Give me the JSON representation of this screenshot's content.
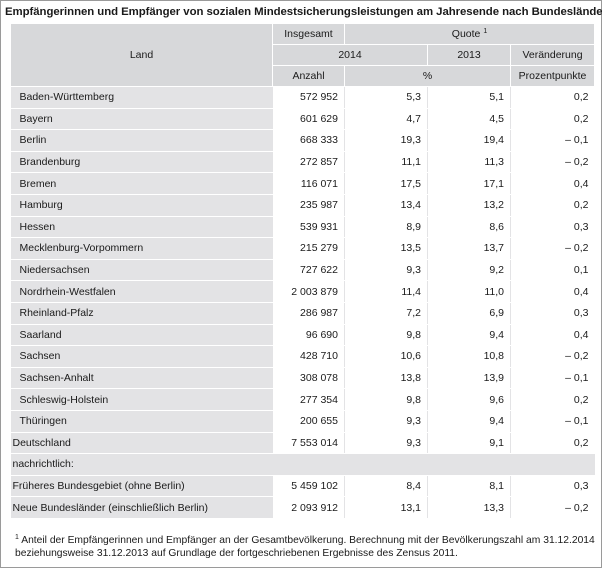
{
  "title": "Empfängerinnen und Empfänger von sozialen Mindestsicherungsleistungen am Jahresende nach Bundesländern",
  "header": {
    "land": "Land",
    "insgesamt": "Insgesamt",
    "quote": "Quote",
    "quote_footnote": "1",
    "year_2014": "2014",
    "year_2013": "2013",
    "veraenderung": "Veränderung",
    "anzahl": "Anzahl",
    "percent": "%",
    "prozentpunkte": "Prozentpunkte"
  },
  "rows": [
    {
      "land": "Baden-Württemberg",
      "anzahl": "572 952",
      "quote2014": "5,3",
      "quote2013": "5,1",
      "change": "0,2"
    },
    {
      "land": "Bayern",
      "anzahl": "601 629",
      "quote2014": "4,7",
      "quote2013": "4,5",
      "change": "0,2"
    },
    {
      "land": "Berlin",
      "anzahl": "668 333",
      "quote2014": "19,3",
      "quote2013": "19,4",
      "change": "– 0,1"
    },
    {
      "land": "Brandenburg",
      "anzahl": "272 857",
      "quote2014": "11,1",
      "quote2013": "11,3",
      "change": "– 0,2"
    },
    {
      "land": "Bremen",
      "anzahl": "116 071",
      "quote2014": "17,5",
      "quote2013": "17,1",
      "change": "0,4"
    },
    {
      "land": "Hamburg",
      "anzahl": "235 987",
      "quote2014": "13,4",
      "quote2013": "13,2",
      "change": "0,2"
    },
    {
      "land": "Hessen",
      "anzahl": "539 931",
      "quote2014": "8,9",
      "quote2013": "8,6",
      "change": "0,3"
    },
    {
      "land": "Mecklenburg-Vorpommern",
      "anzahl": "215 279",
      "quote2014": "13,5",
      "quote2013": "13,7",
      "change": "– 0,2"
    },
    {
      "land": "Niedersachsen",
      "anzahl": "727 622",
      "quote2014": "9,3",
      "quote2013": "9,2",
      "change": "0,1"
    },
    {
      "land": "Nordrhein-Westfalen",
      "anzahl": "2 003 879",
      "quote2014": "11,4",
      "quote2013": "11,0",
      "change": "0,4"
    },
    {
      "land": "Rheinland-Pfalz",
      "anzahl": "286 987",
      "quote2014": "7,2",
      "quote2013": "6,9",
      "change": "0,3"
    },
    {
      "land": "Saarland",
      "anzahl": "96 690",
      "quote2014": "9,8",
      "quote2013": "9,4",
      "change": "0,4"
    },
    {
      "land": "Sachsen",
      "anzahl": "428 710",
      "quote2014": "10,6",
      "quote2013": "10,8",
      "change": "– 0,2"
    },
    {
      "land": "Sachsen-Anhalt",
      "anzahl": "308 078",
      "quote2014": "13,8",
      "quote2013": "13,9",
      "change": "– 0,1"
    },
    {
      "land": "Schleswig-Holstein",
      "anzahl": "277 354",
      "quote2014": "9,8",
      "quote2013": "9,6",
      "change": "0,2"
    },
    {
      "land": "Thüringen",
      "anzahl": "200 655",
      "quote2014": "9,3",
      "quote2013": "9,4",
      "change": "– 0,1"
    }
  ],
  "total": {
    "land": "Deutschland",
    "anzahl": "7 553 014",
    "quote2014": "9,3",
    "quote2013": "9,1",
    "change": "0,2"
  },
  "nachrichtlich_label": "nachrichtlich:",
  "nachrichtlich": [
    {
      "land": "Früheres Bundesgebiet (ohne Berlin)",
      "anzahl": "5 459 102",
      "quote2014": "8,4",
      "quote2013": "8,1",
      "change": "0,3"
    },
    {
      "land": "Neue Bundesländer (einschließlich Berlin)",
      "anzahl": "2 093 912",
      "quote2014": "13,1",
      "quote2013": "13,3",
      "change": "– 0,2"
    }
  ],
  "footnote": {
    "marker": "1",
    "line1": "Anteil der Empfängerinnen und Empfänger an der Gesamtbevölkerung. Berechnung mit der Bevölkerungszahl am 31.12.2014",
    "line2": "beziehungsweise 31.12.2013 auf Grundlage der fortgeschriebenen Ergebnisse des Zensus 2011."
  }
}
